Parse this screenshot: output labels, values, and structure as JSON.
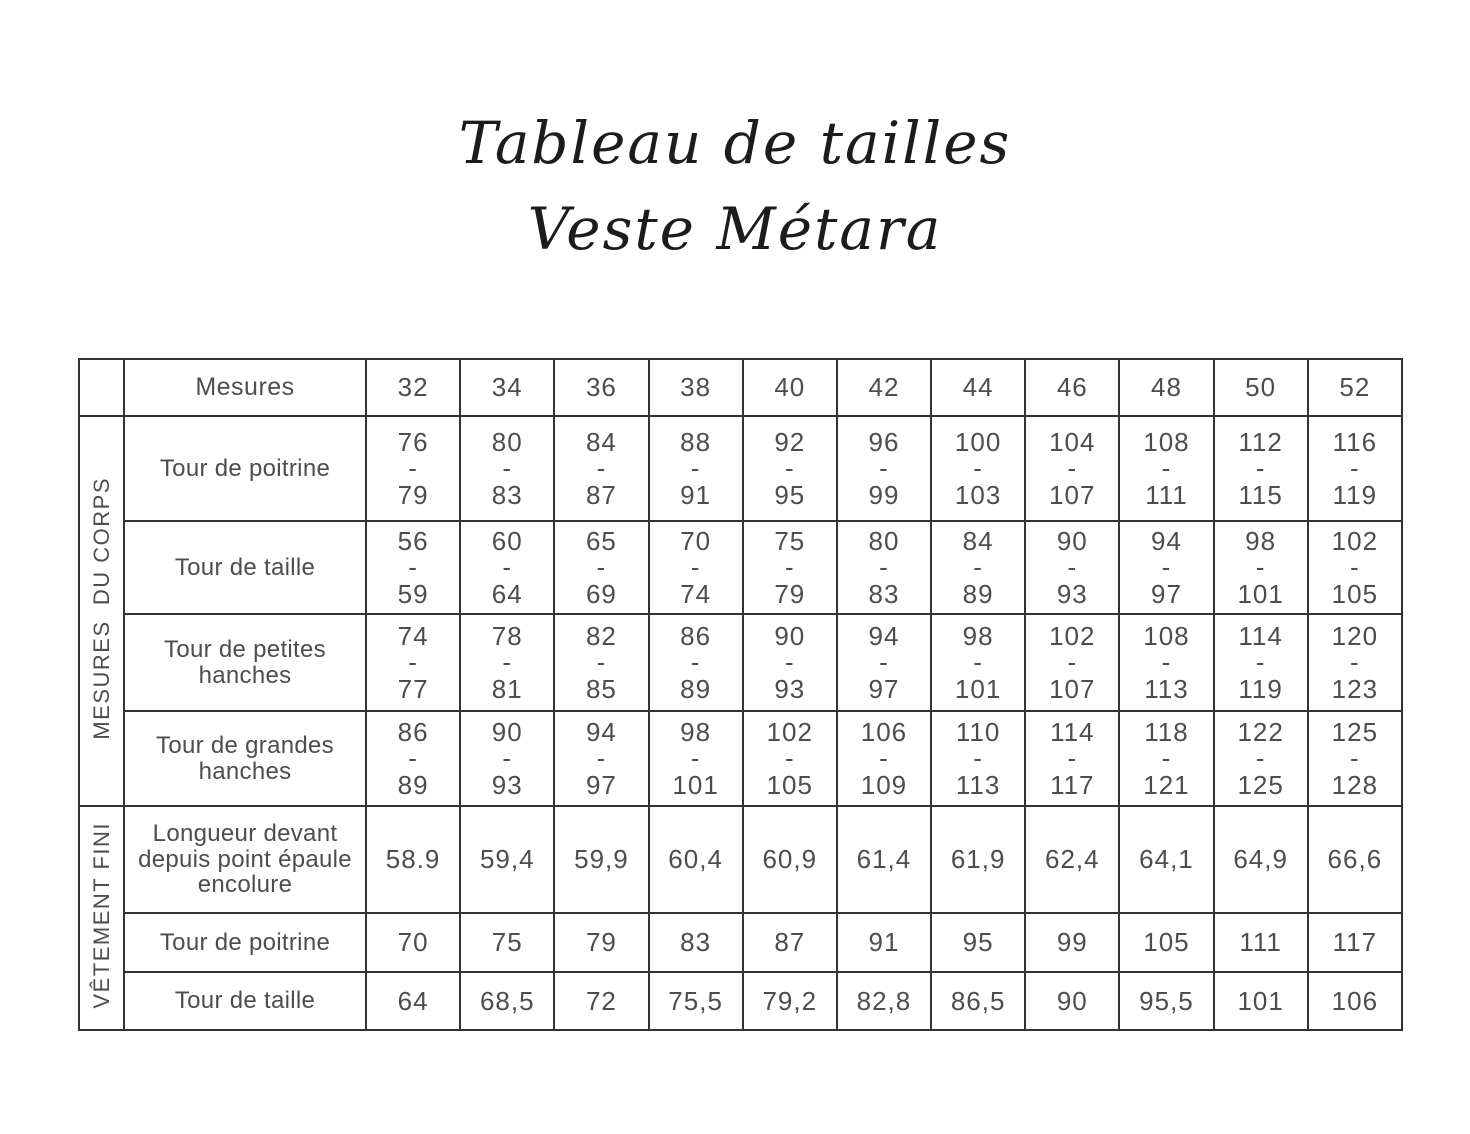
{
  "title": {
    "line1": "Tableau de tailles",
    "line2": "Veste Métara"
  },
  "table": {
    "corner_label": "Mesures",
    "sizes": [
      "32",
      "34",
      "36",
      "38",
      "40",
      "42",
      "44",
      "46",
      "48",
      "50",
      "52"
    ],
    "groups": [
      {
        "label": "MESURES  DU CORPS",
        "rows": [
          {
            "label": "Tour de poitrine",
            "values": [
              "76\n-\n79",
              "80\n-\n83",
              "84\n-\n87",
              "88\n-\n91",
              "92\n-\n95",
              "96\n-\n99",
              "100\n-\n103",
              "104\n-\n107",
              "108\n-\n111",
              "112\n-\n115",
              "116\n-\n119"
            ]
          },
          {
            "label": "Tour de taille",
            "values": [
              "56\n-\n59",
              "60\n-\n64",
              "65\n-\n69",
              "70\n-\n74",
              "75\n-\n79",
              "80\n-\n83",
              "84\n-\n89",
              "90\n-\n93",
              "94\n-\n97",
              "98\n-\n101",
              "102\n-\n105"
            ]
          },
          {
            "label": "Tour de petites hanches",
            "values": [
              "74\n-\n77",
              "78\n-\n81",
              "82\n-\n85",
              "86\n-\n89",
              "90\n-\n93",
              "94\n-\n97",
              "98\n-\n101",
              "102\n-\n107",
              "108\n-\n113",
              "114\n-\n119",
              "120\n-\n123"
            ]
          },
          {
            "label": "Tour de grandes hanches",
            "values": [
              "86\n-\n89",
              "90\n-\n93",
              "94\n-\n97",
              "98\n-\n101",
              "102\n-\n105",
              "106\n-\n109",
              "110\n-\n113",
              "114\n-\n117",
              "118\n-\n121",
              "122\n-\n125",
              "125\n-\n128"
            ]
          }
        ]
      },
      {
        "label": "VÊTEMENT FINI",
        "rows": [
          {
            "label": "Longueur devant depuis point épaule encolure",
            "values": [
              "58.9",
              "59,4",
              "59,9",
              "60,4",
              "60,9",
              "61,4",
              "61,9",
              "62,4",
              "64,1",
              "64,9",
              "66,6"
            ]
          },
          {
            "label": "Tour de poitrine",
            "values": [
              "70",
              "75",
              "79",
              "83",
              "87",
              "91",
              "95",
              "99",
              "105",
              "111",
              "117"
            ]
          },
          {
            "label": "Tour de taille",
            "values": [
              "64",
              "68,5",
              "72",
              "75,5",
              "79,2",
              "82,8",
              "86,5",
              "90",
              "95,5",
              "101",
              "106"
            ]
          }
        ]
      }
    ]
  },
  "colors": {
    "background": "#ffffff",
    "border": "#333333",
    "text": "#4d4d4d",
    "title": "#1c1c1c"
  }
}
